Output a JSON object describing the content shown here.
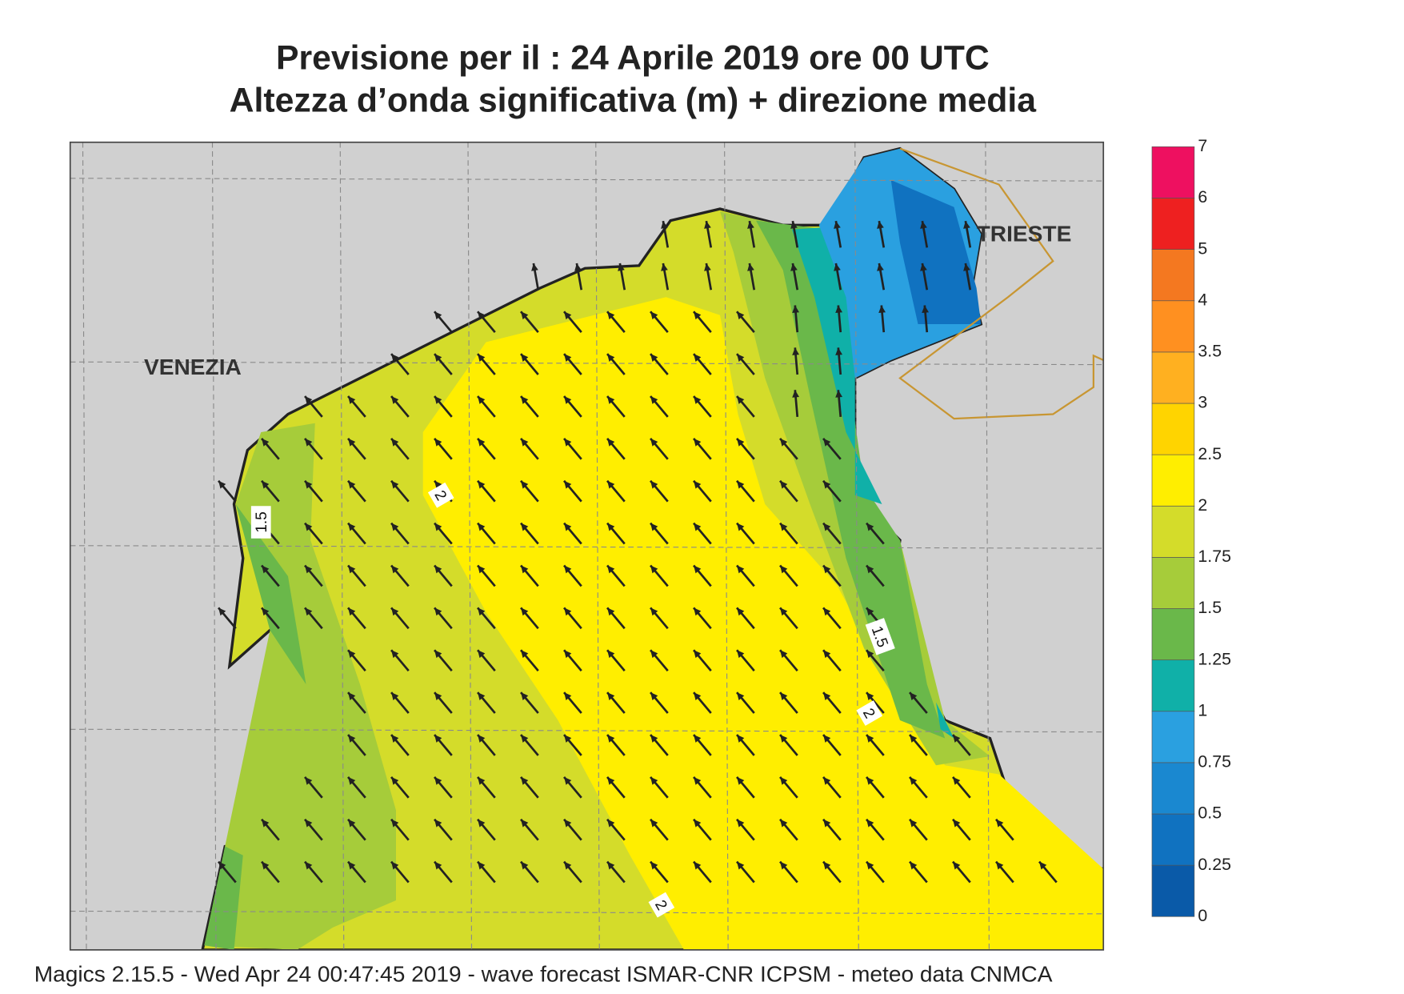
{
  "header": {
    "title": [
      "Previsione per il  :  24   Aprile  2019   ore 00 UTC",
      "Altezza d’onda significativa (m) + direzione media"
    ]
  },
  "map": {
    "places": [
      "VENEZIA",
      "TRIESTE"
    ],
    "contour_labels": [
      "1.5",
      "2",
      "1.5",
      "2",
      "2"
    ]
  },
  "colorbar": {
    "levels": [
      0,
      0.25,
      0.5,
      0.75,
      1,
      1.25,
      1.5,
      1.75,
      2,
      2.5,
      3,
      3.5,
      4,
      5,
      6,
      7
    ],
    "colors": [
      "#0a5aa8",
      "#1072c0",
      "#1a88d0",
      "#2aa0e0",
      "#10b0a8",
      "#6ab84a",
      "#a6cc3a",
      "#d4dc2a",
      "#ffee00",
      "#ffd400",
      "#ffb020",
      "#ff9020",
      "#f47820",
      "#ee2020",
      "#ee1060"
    ]
  },
  "footer": "Magics 2.15.5 - Wed Apr 24 00:47:45 2019 - wave forecast  ISMAR-CNR  ICPSM - meteo data   CNMCA"
}
